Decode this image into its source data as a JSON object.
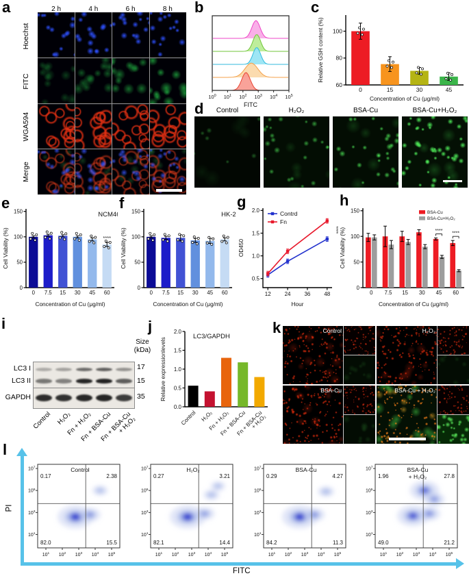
{
  "panel_letters": {
    "a": "a",
    "b": "b",
    "c": "c",
    "d": "d",
    "e": "e",
    "f": "f",
    "g": "g",
    "h": "h",
    "i": "i",
    "j": "j",
    "k": "k",
    "l": "l"
  },
  "panel_a": {
    "col_headers": [
      "2 h",
      "4 h",
      "6 h",
      "8 h"
    ],
    "row_labels": [
      "Hoechst",
      "FITC",
      "WGA594",
      "Merge"
    ]
  },
  "panel_d": {
    "titles": [
      "Control",
      "H₂O₂",
      "BSA-Cu",
      "BSA-Cu+H₂O₂"
    ]
  },
  "panel_i": {
    "size_header_1": "Size",
    "size_header_2": "(kDa)",
    "band_labels": [
      "LC3 I",
      "LC3 II",
      "GAPDH"
    ],
    "band_sizes": [
      "17",
      "15",
      "35"
    ],
    "lane_labels": [
      "Control",
      "H₂O₂",
      "Fn + H₂O₂",
      "Fn + BSA-Cu",
      "Fn + BSA-Cu + H₂O₂"
    ]
  },
  "panel_k": {
    "titles": [
      "Control",
      "H₂O₂",
      "BSA-Cu",
      "BSA-Cu + H₂O₂"
    ]
  },
  "panel_l": {
    "ylabel": "PI",
    "xlabel": "FITC"
  },
  "chart_data": [
    {
      "id": "b",
      "type": "area",
      "variant": "flow-histogram-ridges",
      "xlabel": "FITC",
      "x_log_range": [
        0,
        5
      ],
      "xticks": [
        "10^0",
        "10^1",
        "10^2",
        "10^3",
        "10^4",
        "10^5"
      ],
      "series": [
        {
          "name": "ridge-top-magenta",
          "fill": "#f9a8e6",
          "line": "#ee46c8",
          "peak_log": 2.85,
          "sigma": 0.27,
          "height": 1.0
        },
        {
          "name": "ridge-2-green",
          "fill": "#b8ec92",
          "line": "#70c638",
          "peak_log": 2.9,
          "sigma": 0.25,
          "height": 0.95
        },
        {
          "name": "ridge-3-cyan",
          "fill": "#96e4f4",
          "line": "#30bade",
          "peak_log": 2.9,
          "sigma": 0.25,
          "height": 0.95
        },
        {
          "name": "ridge-4-orange",
          "fill": "#fbd8a8",
          "line": "#f4a048",
          "peak_log": 2.55,
          "sigma": 0.42,
          "height": 0.8
        },
        {
          "name": "ridge-bottom-red",
          "fill": "#f99a90",
          "line": "#e84534",
          "peak_log": 2.2,
          "sigma": 0.28,
          "height": 1.0
        }
      ]
    },
    {
      "id": "c",
      "type": "bar",
      "ylabel": "Relative GSH content (%)",
      "xlabel": "Concentration of Cu (μg/ml)",
      "categories": [
        "0",
        "15",
        "30",
        "45"
      ],
      "values": [
        100,
        75.5,
        70.5,
        66.2
      ],
      "errors": [
        6,
        5.5,
        2.5,
        2.8
      ],
      "colors": [
        "#ed1c24",
        "#f7941e",
        "#b5b414",
        "#3bb54a"
      ],
      "yticks": [
        60,
        80,
        100
      ],
      "ylim": [
        60,
        112
      ],
      "dots": true
    },
    {
      "id": "e",
      "type": "bar",
      "annotation": "NCM460",
      "ylabel": "Cell Viability (%)",
      "xlabel": "Concentration of Cu (μg/ml)",
      "categories": [
        "0",
        "7.5",
        "15",
        "30",
        "45",
        "60"
      ],
      "values": [
        100,
        103,
        102,
        100,
        95,
        85
      ],
      "errors": [
        2,
        2,
        2,
        2,
        3,
        4
      ],
      "colors": [
        "#0c0c96",
        "#1d1dc9",
        "#4152d4",
        "#6190de",
        "#93b9ec",
        "#c5dbf4"
      ],
      "yticks": [
        0,
        50,
        100,
        150
      ],
      "ylim": [
        0,
        155
      ],
      "dots": true,
      "sig": [
        {
          "index": 5,
          "text": "****"
        }
      ]
    },
    {
      "id": "f",
      "type": "bar",
      "annotation": "HK-2",
      "ylabel": "Cell Viability (%)",
      "xlabel": "Concentration of Cu (μg/ml)",
      "categories": [
        "0",
        "7.5",
        "15",
        "30",
        "45",
        "60"
      ],
      "values": [
        100,
        98,
        98,
        93,
        92,
        95
      ],
      "errors": [
        2,
        3,
        6,
        4,
        5,
        3
      ],
      "colors": [
        "#0c0c96",
        "#1d1dc9",
        "#4152d4",
        "#6190de",
        "#93b9ec",
        "#c5dbf4"
      ],
      "yticks": [
        0,
        50,
        100,
        150
      ],
      "ylim": [
        0,
        155
      ],
      "dots": true
    },
    {
      "id": "g",
      "type": "line",
      "ylabel": "OD450",
      "xlabel": "Hour",
      "x": [
        12,
        24,
        48
      ],
      "xticks": [
        12,
        24,
        36,
        48
      ],
      "series": [
        {
          "name": "Contrd",
          "color": "#2231cd",
          "values": [
            0.58,
            0.88,
            1.37
          ]
        },
        {
          "name": "Fn",
          "color": "#e8192c",
          "values": [
            0.61,
            1.1,
            1.77
          ]
        }
      ],
      "point_error": 0.05,
      "yticks": [
        "0.5",
        "1.0",
        "1.5",
        "2.0"
      ],
      "ylim": [
        0.3,
        2.05
      ],
      "sig": "****"
    },
    {
      "id": "h",
      "type": "grouped-bar",
      "ylabel": "Cell Viability (%)",
      "xlabel": "Concentration of Cu (μg/ml)",
      "categories": [
        "0",
        "7.5",
        "15",
        "30",
        "45",
        "60"
      ],
      "series": [
        {
          "name": "BSA-Cu",
          "color": "#ed1c24",
          "values": [
            98,
            100,
            100,
            108,
            95,
            87
          ],
          "errors": [
            8,
            20,
            10,
            5,
            2,
            5
          ]
        },
        {
          "name": "BSA-Cu+H₂O₂",
          "color": "#9d9d9d",
          "values": [
            98,
            84,
            89,
            80,
            60,
            33
          ],
          "errors": [
            5,
            8,
            5,
            4,
            3,
            2
          ]
        }
      ],
      "yticks": [
        0,
        50,
        100,
        150
      ],
      "ylim": [
        0,
        155
      ],
      "legend": true,
      "sig": [
        {
          "index": 4,
          "text": "****"
        },
        {
          "index": 5,
          "text": "****"
        }
      ]
    },
    {
      "id": "j",
      "type": "bar",
      "title": "LC3/GAPDH",
      "ylabel": "Relative expressionlevels",
      "categories": [
        "Control",
        "H₂O₂",
        "Fn + H₂O₂",
        "Fn + BSA-Cu",
        "Fn + BSA-Cu + H₂O₂"
      ],
      "values": [
        0.56,
        0.41,
        1.3,
        1.18,
        0.79
      ],
      "colors": [
        "#000000",
        "#c41230",
        "#e8650d",
        "#76b82a",
        "#f2a900"
      ],
      "yticks": [
        "0.0",
        "0.5",
        "1.0",
        "1.5",
        "2.0"
      ],
      "ylim": [
        0,
        2
      ],
      "rot_ticks": true
    },
    {
      "id": "l1",
      "type": "flow-density",
      "title": "Control",
      "quadrants": {
        "ul": "0.17",
        "ur": "2.38",
        "ll": "82.0",
        "lr": "15.5"
      },
      "xticks": [
        "10^1",
        "10^2",
        "10^3",
        "10^4",
        "10^5"
      ],
      "yticks": [
        "10^7",
        "10^5",
        "10^3",
        "10^1"
      ],
      "populations": [
        {
          "x": 2.8,
          "y": 2.6,
          "s": 1.0
        },
        {
          "x": 3.7,
          "y": 2.8,
          "s": 0.4
        },
        {
          "x": 4.3,
          "y": 5.0,
          "s": 0.18
        }
      ]
    },
    {
      "id": "l2",
      "type": "flow-density",
      "title": "H₂O₂",
      "quadrants": {
        "ul": "0.27",
        "ur": "3.21",
        "ll": "82.1",
        "lr": "14.4"
      },
      "xticks": [
        "10^1",
        "10^2",
        "10^3",
        "10^4",
        "10^5"
      ],
      "yticks": [
        "10^7",
        "10^5",
        "10^3",
        "10^1"
      ],
      "populations": [
        {
          "x": 2.75,
          "y": 2.6,
          "s": 1.0
        },
        {
          "x": 3.8,
          "y": 2.9,
          "s": 0.35
        },
        {
          "x": 4.2,
          "y": 4.6,
          "s": 0.2
        },
        {
          "x": 4.6,
          "y": 5.4,
          "s": 0.15
        }
      ]
    },
    {
      "id": "l3",
      "type": "flow-density",
      "title": "BSA-Cu",
      "quadrants": {
        "ul": "0.29",
        "ur": "4.27",
        "ll": "84.2",
        "lr": "11.3"
      },
      "xticks": [
        "10^1",
        "10^2",
        "10^3",
        "10^4",
        "10^5"
      ],
      "yticks": [
        "10^7",
        "10^5",
        "10^3",
        "10^1"
      ],
      "populations": [
        {
          "x": 2.7,
          "y": 2.6,
          "s": 1.0
        },
        {
          "x": 3.6,
          "y": 2.8,
          "s": 0.4
        },
        {
          "x": 4.3,
          "y": 4.9,
          "s": 0.22
        }
      ]
    },
    {
      "id": "l4",
      "type": "flow-density",
      "title": "BSA-Cu",
      "title2": "+ H₂O₂",
      "quadrants": {
        "ul": "1.96",
        "ur": "27.8",
        "ll": "49.0",
        "lr": "21.2"
      },
      "xticks": [
        "10^1",
        "10^2",
        "10^3",
        "10^4",
        "10^5"
      ],
      "yticks": [
        "10^7",
        "10^5",
        "10^3",
        "10^1"
      ],
      "populations": [
        {
          "x": 2.8,
          "y": 2.7,
          "s": 0.85
        },
        {
          "x": 3.5,
          "y": 5.0,
          "s": 0.75
        },
        {
          "x": 4.1,
          "y": 4.2,
          "s": 0.4
        },
        {
          "x": 3.8,
          "y": 2.9,
          "s": 0.45
        }
      ]
    }
  ]
}
